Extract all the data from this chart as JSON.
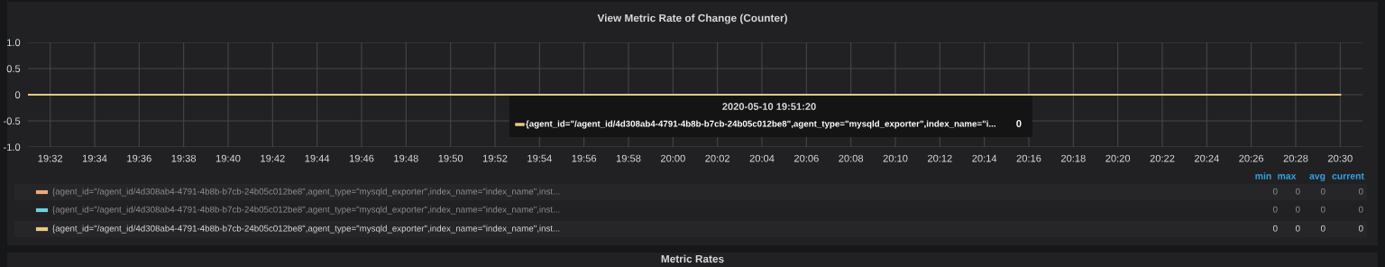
{
  "chart_data": {
    "type": "line",
    "title": "View Metric Rate of Change (Counter)",
    "x": [
      "2020-05-10T19:31",
      "2020-05-10T19:40",
      "2020-05-10T19:50",
      "2020-05-10T20:00",
      "2020-05-10T20:10",
      "2020-05-10T20:20",
      "2020-05-10T20:30"
    ],
    "series": [
      {
        "name": "{agent_id=\"/agent_id/4d308ab4-4791-4b8b-b7cb-24b05c012be8\",agent_type=\"mysqld_exporter\",index_name=\"index_name\",inst...",
        "color": "#f0a878",
        "values": [
          null,
          null,
          null,
          null,
          null,
          null,
          null
        ]
      },
      {
        "name": "{agent_id=\"/agent_id/4d308ab4-4791-4b8b-b7cb-24b05c012be8\",agent_type=\"mysqld_exporter\",index_name=\"index_name\",inst...",
        "color": "#6ed0e0",
        "values": [
          null,
          null,
          null,
          null,
          null,
          null,
          null
        ]
      },
      {
        "name": "{agent_id=\"/agent_id/4d308ab4-4791-4b8b-b7cb-24b05c012be8\",agent_type=\"mysqld_exporter\",index_name=\"index_name\",inst...",
        "color": "#e8c887",
        "values": [
          0,
          0,
          0,
          0,
          0,
          0,
          0
        ]
      }
    ],
    "xlim": [
      "2020-05-10T19:31",
      "2020-05-10T20:31"
    ],
    "xticks": [
      {
        "value": "2020-05-10T19:32",
        "label": "19:32"
      },
      {
        "value": "2020-05-10T19:34",
        "label": "19:34"
      },
      {
        "value": "2020-05-10T19:36",
        "label": "19:36"
      },
      {
        "value": "2020-05-10T19:38",
        "label": "19:38"
      },
      {
        "value": "2020-05-10T19:40",
        "label": "19:40"
      },
      {
        "value": "2020-05-10T19:42",
        "label": "19:42"
      },
      {
        "value": "2020-05-10T19:44",
        "label": "19:44"
      },
      {
        "value": "2020-05-10T19:46",
        "label": "19:46"
      },
      {
        "value": "2020-05-10T19:48",
        "label": "19:48"
      },
      {
        "value": "2020-05-10T19:50",
        "label": "19:50"
      },
      {
        "value": "2020-05-10T19:52",
        "label": "19:52"
      },
      {
        "value": "2020-05-10T19:54",
        "label": "19:54"
      },
      {
        "value": "2020-05-10T19:56",
        "label": "19:56"
      },
      {
        "value": "2020-05-10T19:58",
        "label": "19:58"
      },
      {
        "value": "2020-05-10T20:00",
        "label": "20:00"
      },
      {
        "value": "2020-05-10T20:02",
        "label": "20:02"
      },
      {
        "value": "2020-05-10T20:04",
        "label": "20:04"
      },
      {
        "value": "2020-05-10T20:06",
        "label": "20:06"
      },
      {
        "value": "2020-05-10T20:08",
        "label": "20:08"
      },
      {
        "value": "2020-05-10T20:10",
        "label": "20:10"
      },
      {
        "value": "2020-05-10T20:12",
        "label": "20:12"
      },
      {
        "value": "2020-05-10T20:14",
        "label": "20:14"
      },
      {
        "value": "2020-05-10T20:16",
        "label": "20:16"
      },
      {
        "value": "2020-05-10T20:18",
        "label": "20:18"
      },
      {
        "value": "2020-05-10T20:20",
        "label": "20:20"
      },
      {
        "value": "2020-05-10T20:22",
        "label": "20:22"
      },
      {
        "value": "2020-05-10T20:24",
        "label": "20:24"
      },
      {
        "value": "2020-05-10T20:26",
        "label": "20:26"
      },
      {
        "value": "2020-05-10T20:28",
        "label": "20:28"
      },
      {
        "value": "2020-05-10T20:30",
        "label": "20:30"
      }
    ],
    "ylim": [
      -1,
      1
    ],
    "yticks": [
      {
        "value": -1,
        "label": "-1.0"
      },
      -0.5,
      0,
      0.5,
      {
        "value": 1,
        "label": "1.0"
      }
    ],
    "grid": true,
    "legend": "bottom",
    "marker": "none",
    "line_style": "solid",
    "annotations": [
      "2020-05-10 19:51:20",
      "{agent_id=\"/agent_id/4d308ab4-4791-4b8b-b7cb-24b05c012be8\",agent_type=\"mysqld_exporter\",index_name=\"i...",
      "0",
      "min",
      "max",
      "avg",
      "current",
      "0",
      "0",
      "0",
      "0",
      "0",
      "0",
      "0",
      "0",
      "0",
      "0",
      "0",
      "0",
      "Metric Rates"
    ]
  }
}
